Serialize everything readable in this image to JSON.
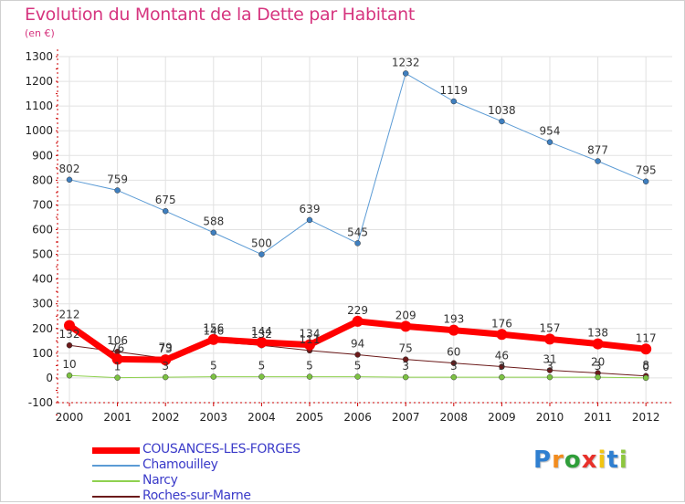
{
  "header": {
    "title": "Evolution du Montant de la Dette par Habitant",
    "unit": "(en €)"
  },
  "colors": {
    "title": "#d6357f",
    "axis_red": "#cc0000",
    "grid": "#e2e2e2",
    "legend_text": "#3b3bc9"
  },
  "chart_data": {
    "type": "line",
    "title": "Evolution du Montant de la Dette par Habitant",
    "ylabel": "(en €)",
    "xlabel": "",
    "categories": [
      "2000",
      "2001",
      "2002",
      "2003",
      "2004",
      "2005",
      "2006",
      "2007",
      "2008",
      "2009",
      "2010",
      "2011",
      "2012"
    ],
    "ylim": [
      -100,
      1300
    ],
    "yticks": [
      -100,
      0,
      100,
      200,
      300,
      400,
      500,
      600,
      700,
      800,
      900,
      1000,
      1100,
      1200,
      1300
    ],
    "grid": true,
    "legend_position": "bottom-left",
    "series": [
      {
        "name": "Roches-sur-Marne",
        "color": "#6b1a1a",
        "marker": "#6b1a1a",
        "width": 1,
        "values": [
          132,
          106,
          79,
          146,
          132,
          111,
          94,
          75,
          60,
          46,
          31,
          20,
          8
        ],
        "labels": [
          "132",
          "106",
          "79",
          "146",
          "132",
          "111",
          "94",
          "75",
          "60",
          "46",
          "31",
          "20",
          "8"
        ]
      },
      {
        "name": "Narcy",
        "color": "#8fd14f",
        "marker": "#7cc242",
        "width": 1,
        "values": [
          10,
          1,
          3,
          5,
          5,
          5,
          5,
          3,
          3,
          3,
          3,
          3,
          0
        ],
        "labels": [
          "10",
          "1",
          "3",
          "5",
          "5",
          "5",
          "5",
          "3",
          "3",
          "3",
          "3",
          "3",
          "0"
        ]
      },
      {
        "name": "Chamouilley",
        "color": "#5b9bd5",
        "marker": "#3f7fbf",
        "width": 1,
        "values": [
          802,
          759,
          675,
          588,
          500,
          639,
          545,
          1232,
          1119,
          1038,
          954,
          877,
          795
        ],
        "labels": [
          "802",
          "759",
          "675",
          "588",
          "500",
          "639",
          "545",
          "1232",
          "1119",
          "1038",
          "954",
          "877",
          "795"
        ]
      },
      {
        "name": "COUSANCES-LES-FORGES",
        "color": "#ff0000",
        "marker": "#ff0000",
        "width": 7,
        "values": [
          212,
          76,
          73,
          156,
          144,
          134,
          229,
          209,
          193,
          176,
          157,
          138,
          117
        ],
        "labels": [
          "212",
          "76",
          "73",
          "156",
          "144",
          "134",
          "229",
          "209",
          "193",
          "176",
          "157",
          "138",
          "117"
        ]
      }
    ]
  },
  "legend": [
    {
      "label": "COUSANCES-LES-FORGES",
      "color": "#ff0000",
      "thickness": 7
    },
    {
      "label": "Chamouilley",
      "color": "#5b9bd5",
      "thickness": 2
    },
    {
      "label": "Narcy",
      "color": "#8fd14f",
      "thickness": 2
    },
    {
      "label": "Roches-sur-Marne",
      "color": "#6b1a1a",
      "thickness": 2
    }
  ],
  "logo": {
    "letters": [
      "P",
      "r",
      "o",
      "x",
      "i",
      "t",
      "i"
    ],
    "colors": [
      "#2f7fd0",
      "#f28c1e",
      "#2f9e3a",
      "#e8302a",
      "#f2c511",
      "#2f7fd0",
      "#8dc63f"
    ]
  }
}
